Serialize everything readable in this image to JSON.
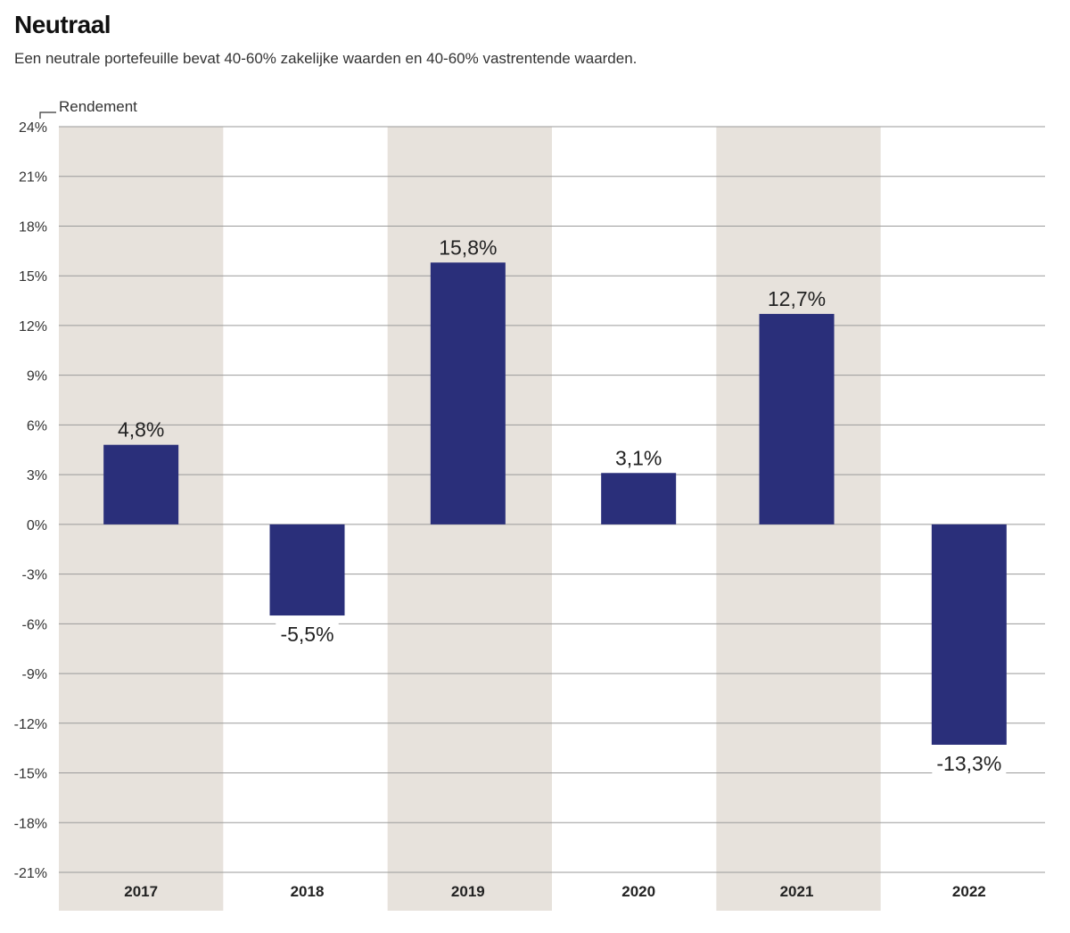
{
  "title": "Neutraal",
  "subtitle": "Een neutrale portefeuille bevat 40-60% zakelijke waarden en 40-60% vastrentende waarden.",
  "colors": {
    "bar": "#2a2f7a",
    "band": "#e7e2dc",
    "grid": "#9a9a9a"
  },
  "chart_data": {
    "type": "bar",
    "title": "Neutraal",
    "ylabel": "Rendement",
    "xlabel": "",
    "categories": [
      "2017",
      "2018",
      "2019",
      "2020",
      "2021",
      "2022"
    ],
    "values": [
      4.8,
      -5.5,
      15.8,
      3.1,
      12.7,
      -13.3
    ],
    "value_labels": [
      "4,8%",
      "-5,5%",
      "15,8%",
      "3,1%",
      "12,7%",
      "-13,3%"
    ],
    "ylim": [
      -21,
      24
    ],
    "yticks": [
      24,
      21,
      18,
      15,
      12,
      9,
      6,
      3,
      0,
      -3,
      -6,
      -9,
      -12,
      -15,
      -18,
      -21
    ],
    "ytick_labels": [
      "24%",
      "21%",
      "18%",
      "15%",
      "12%",
      "9%",
      "6%",
      "3%",
      "0%",
      "-3%",
      "-6%",
      "-9%",
      "-12%",
      "-15%",
      "-18%",
      "-21%"
    ],
    "grid": true,
    "shaded_categories": [
      "2017",
      "2019",
      "2021"
    ]
  }
}
